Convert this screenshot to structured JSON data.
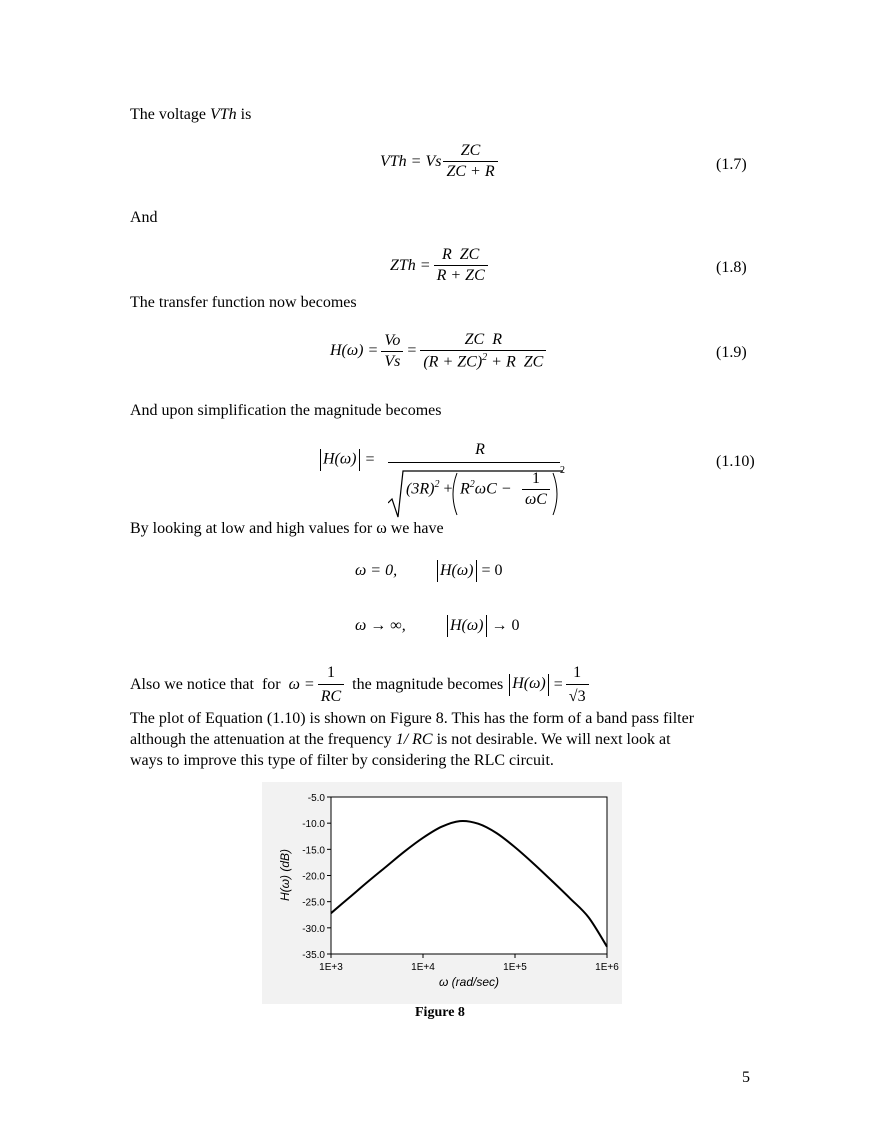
{
  "text": {
    "intro_vth": "The voltage VTh is",
    "intro_vth_prefix": "The voltage ",
    "intro_vth_var": "VTh",
    "intro_vth_suffix": " is",
    "and": "And",
    "transfer": "The transfer function now becomes",
    "simplification": "And upon simplification the magnitude becomes",
    "low_high": "By looking at low and high values for ω we have",
    "also_prefix": "Also we notice that  for",
    "also_middle": "the magnitude becomes",
    "para_line1": "The plot of Equation (1.10) is shown on Figure 8. This has the form of a band pass filter",
    "para_line2a": "although the attenuation at the frequency",
    "para_line2b": "1/ RC",
    "para_line2c": " is not desirable. We will next look at",
    "para_line3": "ways to improve this type of filter by considering the RLC circuit.",
    "caption": "Figure 8",
    "page_number": "5"
  },
  "equations": {
    "eq17": {
      "lhs": "VTh = Vs",
      "num": "ZC",
      "den": "ZC + R",
      "number": "(1.7)"
    },
    "eq18": {
      "lhs": "ZTh =",
      "num": "R  ZC",
      "den": "R + ZC",
      "number": "(1.8)"
    },
    "eq19": {
      "lhs": "H(ω) =",
      "frac1_num": "Vo",
      "frac1_den": "Vs",
      "eq": "=",
      "frac2_num": "ZC  R",
      "frac2_den_a": "(R + ZC)",
      "frac2_den_sup": "2",
      "frac2_den_b": " + R  ZC",
      "number": "(1.9)"
    },
    "eq110": {
      "lhs": "H(ω)",
      "eq": "=",
      "num": "R",
      "den_a": "(3R)",
      "den_sup1": "2",
      "den_plus": " + ",
      "den_b": "R",
      "den_sup2": "2",
      "den_c": "ωC −",
      "inner_num": "1",
      "inner_den": "ωC",
      "outer_sup": "2",
      "number": "(1.10)"
    },
    "limit1": {
      "cond": "ω = 0,",
      "mag": "H(ω)",
      "result": "= 0"
    },
    "limit2": {
      "cond": "ω → ∞,",
      "mag": "H(ω)",
      "result": "→ 0"
    },
    "inline_omega": {
      "lhs": "ω =",
      "num": "1",
      "den": "RC"
    },
    "inline_mag": {
      "lhs": "H(ω)",
      "eq": "=",
      "num": "1",
      "den": "√3"
    }
  },
  "chart_data": {
    "type": "line",
    "xscale": "log",
    "xlabel": "ω (rad/sec)",
    "ylabel": "H(ω) (dB)",
    "xlim": [
      1000,
      1000000
    ],
    "ylim": [
      -35,
      -5
    ],
    "xticks": [
      "1E+3",
      "1E+4",
      "1E+5",
      "1E+6"
    ],
    "yticks": [
      "-5.0",
      "-10.0",
      "-15.0",
      "-20.0",
      "-25.0",
      "-30.0",
      "-35.0"
    ],
    "grid": false,
    "series": [
      {
        "x": [
          1000,
          1585,
          2512,
          3981,
          6310,
          10000,
          15849,
          25119,
          39811,
          63096,
          100000,
          158489,
          251189,
          398107,
          630957,
          1000000
        ],
        "y": [
          -27.2,
          -24.2,
          -21.2,
          -18.3,
          -15.4,
          -12.8,
          -10.7,
          -9.6,
          -10.1,
          -11.9,
          -14.6,
          -17.7,
          -21.0,
          -24.4,
          -28.0,
          -33.6
        ]
      }
    ]
  }
}
